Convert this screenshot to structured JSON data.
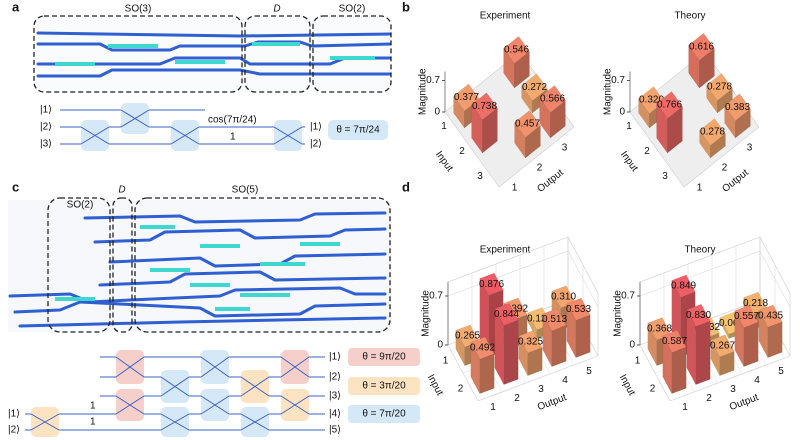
{
  "panel_a": {
    "label": "a",
    "regions": [
      "SO(3)",
      "D",
      "SO(2)"
    ],
    "circuit": {
      "inputs": [
        "|1⟩",
        "|2⟩",
        "|3⟩"
      ],
      "weights": [
        "cos(7π/24)",
        "1"
      ],
      "outputs": [
        "|1⟩",
        "|2⟩"
      ],
      "theta": "θ = 7π/24"
    }
  },
  "panel_b": {
    "label": "b",
    "charts": [
      {
        "title": "Experiment",
        "zlabel": "Magnitude",
        "xlabel": "Input",
        "ylabel": "Output",
        "zlim": [
          0,
          0.9
        ],
        "zticks": [
          0,
          0.7
        ],
        "grid": false,
        "inputs": [
          1,
          2,
          3
        ],
        "outputs": [
          1,
          2,
          3
        ],
        "values": [
          [
            0.377,
            null,
            0.546
          ],
          [
            0.738,
            null,
            0.272
          ],
          [
            null,
            0.457,
            0.566
          ]
        ],
        "value_labels": [
          [
            "0.377",
            null,
            "0.546"
          ],
          [
            "0.738",
            null,
            "0.272"
          ],
          [
            null,
            "0.457",
            "0.566"
          ]
        ]
      },
      {
        "title": "Theory",
        "zlabel": "Magnitude",
        "xlabel": "Input",
        "ylabel": "Output",
        "zlim": [
          0,
          0.9
        ],
        "zticks": [
          0,
          0.7
        ],
        "grid": false,
        "inputs": [
          1,
          2,
          3
        ],
        "outputs": [
          1,
          2,
          3
        ],
        "values": [
          [
            0.32,
            null,
            0.616
          ],
          [
            0.766,
            null,
            0.278
          ],
          [
            null,
            0.278,
            0.383
          ]
        ],
        "value_labels": [
          [
            "0.320",
            null,
            "0.616"
          ],
          [
            "0.766",
            null,
            "0.278"
          ],
          [
            null,
            "0.278",
            "0.383"
          ]
        ]
      }
    ]
  },
  "panel_c": {
    "label": "c",
    "regions": [
      "SO(2)",
      "D",
      "SO(5)"
    ],
    "circuit": {
      "inputs": [
        "|1⟩",
        "|2⟩"
      ],
      "weights": [
        "1",
        "1"
      ],
      "outputs": [
        "|1⟩",
        "|2⟩",
        "|3⟩",
        "|4⟩",
        "|5⟩"
      ],
      "thetas": [
        "θ = 9π/20",
        "θ = 3π/20",
        "θ = 7π/20"
      ]
    }
  },
  "panel_d": {
    "label": "d",
    "charts": [
      {
        "title": "Experiment",
        "zlabel": "Magnitude",
        "xlabel": "Input",
        "ylabel": "Output",
        "zlim": [
          0,
          0.9
        ],
        "zticks": [
          0,
          0.7
        ],
        "grid": true,
        "inputs": [
          1,
          2
        ],
        "outputs": [
          1,
          2,
          3,
          4,
          5
        ],
        "values": [
          [
            0.265,
            0.876,
            0.392,
            0.127,
            0.31
          ],
          [
            0.492,
            0.844,
            0.325,
            0.513,
            0.533
          ]
        ],
        "value_labels": [
          [
            "0.265",
            "0.876",
            "0.392",
            "0.127",
            "0.310"
          ],
          [
            "0.492",
            "0.844",
            "0.325",
            "0.513",
            "0.533"
          ]
        ]
      },
      {
        "title": "Theory",
        "zlabel": "Magnitude",
        "xlabel": "Input",
        "ylabel": "Output",
        "zlim": [
          0,
          0.9
        ],
        "zticks": [
          0,
          0.7
        ],
        "grid": true,
        "inputs": [
          1,
          2
        ],
        "outputs": [
          1,
          2,
          3,
          4,
          5
        ],
        "values": [
          [
            0.368,
            0.849,
            0.132,
            0.062,
            0.218
          ],
          [
            0.587,
            0.83,
            0.267,
            0.557,
            0.435
          ]
        ],
        "value_labels": [
          [
            "0.368",
            "0.849",
            "0.132",
            "0.062",
            "0.218"
          ],
          [
            "0.587",
            "0.830",
            "0.267",
            "0.557",
            "0.435"
          ]
        ]
      }
    ]
  }
}
